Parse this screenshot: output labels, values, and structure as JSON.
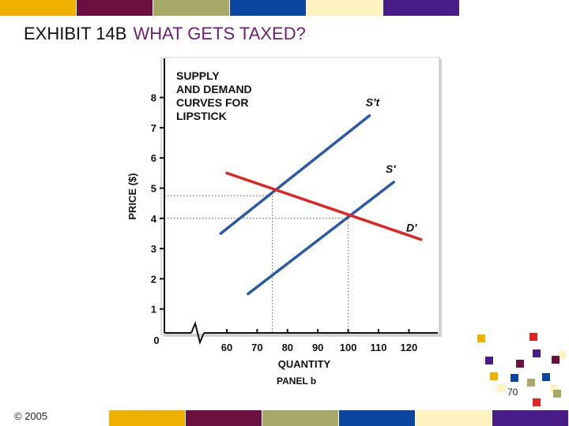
{
  "slide": {
    "title_main": "EXHIBIT 14B",
    "title_sub": "WHAT GETS TAXED?",
    "copyright": "© 2005",
    "page_number": "70"
  },
  "colors": {
    "bar_palette": [
      "#f0b000",
      "#6b1040",
      "#a8a868",
      "#0a46a0",
      "#fdf2c0",
      "#4a1c88"
    ],
    "supply": "#2a5aa6",
    "demand": "#e02424",
    "title_sub": "#6b1f6f"
  },
  "chart_data": {
    "type": "line",
    "title": "SUPPLY AND DEMAND CURVES FOR LIPSTICK",
    "title_lines": [
      "SUPPLY",
      "AND DEMAND",
      "CURVES FOR",
      "LIPSTICK"
    ],
    "xlabel": "QUANTITY",
    "ylabel": "PRICE ($)",
    "panel_label": "PANEL b",
    "origin_label": "0",
    "xticks": [
      60,
      70,
      80,
      90,
      100,
      110,
      120
    ],
    "yticks": [
      1,
      2,
      3,
      4,
      5,
      6,
      7,
      8
    ],
    "xlim": [
      55,
      125
    ],
    "ylim": [
      0,
      8.5
    ],
    "axis_break": true,
    "grid": false,
    "series": [
      {
        "name": "S't",
        "x": [
          58,
          107
        ],
        "y": [
          3.5,
          7.4
        ]
      },
      {
        "name": "S'",
        "x": [
          67,
          115
        ],
        "y": [
          1.5,
          5.2
        ]
      },
      {
        "name": "D'",
        "x": [
          60,
          124
        ],
        "y": [
          5.5,
          3.3
        ]
      }
    ],
    "guides": [
      {
        "x": 75,
        "y": 4.75
      },
      {
        "x": 100,
        "y": 4.0
      }
    ]
  }
}
